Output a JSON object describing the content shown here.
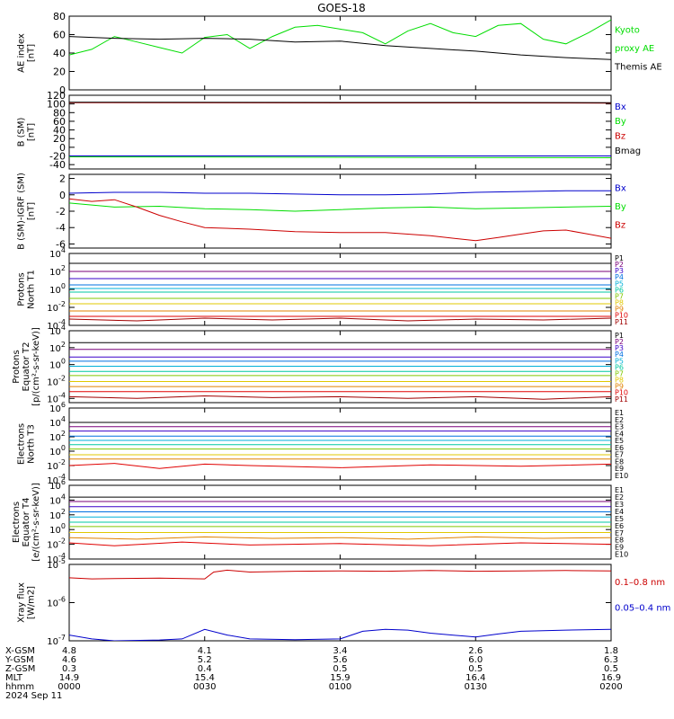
{
  "title": "GOES-18",
  "colors": {
    "black": "#000000",
    "green": "#00dd00",
    "red": "#cc0000",
    "blue": "#0000cc",
    "P1": "#000000",
    "P2": "#7a007a",
    "P3": "#3a00c8",
    "P4": "#0070e0",
    "P5": "#00b0d8",
    "P6": "#00c8a0",
    "P7": "#80c800",
    "P8": "#e0c800",
    "P9": "#e08000",
    "P10": "#e00000",
    "P11": "#a00000"
  },
  "chart_data": [
    {
      "type": "line",
      "ylabel": "AE index\n[nT]",
      "yscale": "linear",
      "ylim": [
        0,
        80
      ],
      "yticks": [
        "0",
        "20",
        "40",
        "60",
        "80"
      ],
      "series": [
        {
          "name": "Kyoto proxy AE",
          "color": "green",
          "x": [
            0,
            5,
            10,
            15,
            20,
            25,
            30,
            35,
            40,
            45,
            50,
            55,
            60,
            65,
            70,
            75,
            80,
            85,
            90,
            95,
            100,
            105,
            110,
            115,
            120
          ],
          "values": [
            38,
            44,
            58,
            52,
            46,
            40,
            57,
            60,
            45,
            58,
            68,
            70,
            66,
            62,
            50,
            64,
            72,
            62,
            58,
            70,
            72,
            55,
            50,
            62,
            76
          ]
        },
        {
          "name": "Themis AE",
          "color": "black",
          "x": [
            0,
            10,
            20,
            30,
            40,
            50,
            60,
            70,
            80,
            90,
            100,
            110,
            120
          ],
          "values": [
            58,
            56,
            55,
            56,
            55,
            52,
            53,
            48,
            45,
            42,
            38,
            35,
            33
          ]
        }
      ]
    },
    {
      "type": "line",
      "ylabel": "B (SM)\n[nT]",
      "yscale": "linear",
      "ylim": [
        -50,
        120
      ],
      "yticks": [
        "-40",
        "-20",
        "0",
        "20",
        "40",
        "60",
        "80",
        "100",
        "120"
      ],
      "series": [
        {
          "name": "Bx",
          "color": "blue",
          "x": [
            0,
            120
          ],
          "values": [
            -20,
            -20
          ]
        },
        {
          "name": "By",
          "color": "green",
          "x": [
            0,
            120
          ],
          "values": [
            -22,
            -24
          ]
        },
        {
          "name": "Bz",
          "color": "red",
          "x": [
            0,
            120
          ],
          "values": [
            103,
            102
          ]
        },
        {
          "name": "Bmag",
          "color": "black",
          "x": [
            0,
            120
          ],
          "values": [
            104,
            103
          ]
        }
      ]
    },
    {
      "type": "line",
      "ylabel": "B (SM)-IGRF (SM)\n[nT]",
      "yscale": "linear",
      "ylim": [
        -6.5,
        2.5
      ],
      "yticks": [
        "-6",
        "-4",
        "-2",
        "0",
        "2"
      ],
      "series": [
        {
          "name": "Bx",
          "color": "blue",
          "x": [
            0,
            10,
            20,
            30,
            40,
            50,
            60,
            70,
            80,
            90,
            100,
            110,
            120
          ],
          "values": [
            0.2,
            0.3,
            0.3,
            0.2,
            0.2,
            0.1,
            0.0,
            0.0,
            0.1,
            0.3,
            0.4,
            0.5,
            0.5
          ]
        },
        {
          "name": "By",
          "color": "green",
          "x": [
            0,
            10,
            20,
            30,
            40,
            50,
            60,
            70,
            80,
            90,
            100,
            110,
            120
          ],
          "values": [
            -1.0,
            -1.5,
            -1.4,
            -1.7,
            -1.8,
            -2.0,
            -1.8,
            -1.6,
            -1.5,
            -1.7,
            -1.6,
            -1.5,
            -1.4
          ]
        },
        {
          "name": "Bz",
          "color": "red",
          "x": [
            0,
            5,
            10,
            15,
            20,
            25,
            30,
            40,
            50,
            60,
            70,
            80,
            90,
            95,
            100,
            105,
            110,
            115,
            120
          ],
          "values": [
            -0.5,
            -0.8,
            -0.6,
            -1.5,
            -2.5,
            -3.3,
            -4.0,
            -4.2,
            -4.5,
            -4.6,
            -4.6,
            -5.0,
            -5.6,
            -5.2,
            -4.8,
            -4.4,
            -4.3,
            -4.8,
            -5.3
          ]
        }
      ]
    },
    {
      "type": "line",
      "ylabel": "Protons\nNorth T1",
      "yscale": "log",
      "ylim": [
        -4,
        4
      ],
      "yticks": [
        "10^-4",
        "10^-2",
        "10^0",
        "10^2",
        "10^4"
      ],
      "series": [
        {
          "name": "P1",
          "color": "P1",
          "x": [
            0,
            120
          ],
          "values": [
            2.9,
            2.9
          ]
        },
        {
          "name": "P2",
          "color": "P2",
          "x": [
            0,
            120
          ],
          "values": [
            2.0,
            2.0
          ]
        },
        {
          "name": "P3",
          "color": "P3",
          "x": [
            0,
            120
          ],
          "values": [
            1.2,
            1.2
          ]
        },
        {
          "name": "P4",
          "color": "P4",
          "x": [
            0,
            120
          ],
          "values": [
            0.5,
            0.5
          ]
        },
        {
          "name": "P5",
          "color": "P5",
          "x": [
            0,
            120
          ],
          "values": [
            0.1,
            0.1
          ]
        },
        {
          "name": "P6",
          "color": "P6",
          "x": [
            0,
            120
          ],
          "values": [
            -0.3,
            -0.3
          ]
        },
        {
          "name": "P7",
          "color": "P7",
          "x": [
            0,
            120
          ],
          "values": [
            -1.0,
            -1.0
          ]
        },
        {
          "name": "P8",
          "color": "P8",
          "x": [
            0,
            120
          ],
          "values": [
            -1.6,
            -1.6
          ]
        },
        {
          "name": "P9",
          "color": "P9",
          "x": [
            0,
            120
          ],
          "values": [
            -2.4,
            -2.4
          ]
        },
        {
          "name": "P10",
          "color": "P10",
          "x": [
            0,
            120
          ],
          "values": [
            -3.0,
            -3.0
          ]
        },
        {
          "name": "P11",
          "color": "P11",
          "x": [
            0,
            15,
            30,
            45,
            60,
            75,
            90,
            105,
            120
          ],
          "values": [
            -3.3,
            -3.5,
            -3.2,
            -3.4,
            -3.2,
            -3.5,
            -3.3,
            -3.4,
            -3.2
          ]
        }
      ]
    },
    {
      "type": "line",
      "ylabel": "Protons\nEquator T2\n[p/(cm²-s-sr-keV)]",
      "yscale": "log",
      "ylim": [
        -4.5,
        4
      ],
      "yticks": [
        "10^-4",
        "10^-2",
        "10^0",
        "10^2",
        "10^4"
      ],
      "series": [
        {
          "name": "P1",
          "color": "P1",
          "x": [
            0,
            120
          ],
          "values": [
            2.6,
            2.6
          ]
        },
        {
          "name": "P2",
          "color": "P2",
          "x": [
            0,
            120
          ],
          "values": [
            1.8,
            1.8
          ]
        },
        {
          "name": "P3",
          "color": "P3",
          "x": [
            0,
            120
          ],
          "values": [
            0.9,
            0.9
          ]
        },
        {
          "name": "P4",
          "color": "P4",
          "x": [
            0,
            120
          ],
          "values": [
            0.4,
            0.4
          ]
        },
        {
          "name": "P5",
          "color": "P5",
          "x": [
            0,
            120
          ],
          "values": [
            -0.2,
            -0.2
          ]
        },
        {
          "name": "P6",
          "color": "P6",
          "x": [
            0,
            120
          ],
          "values": [
            -0.8,
            -0.8
          ]
        },
        {
          "name": "P7",
          "color": "P7",
          "x": [
            0,
            120
          ],
          "values": [
            -1.3,
            -1.3
          ]
        },
        {
          "name": "P8",
          "color": "P8",
          "x": [
            0,
            120
          ],
          "values": [
            -2.0,
            -2.0
          ]
        },
        {
          "name": "P9",
          "color": "P9",
          "x": [
            0,
            120
          ],
          "values": [
            -2.6,
            -2.6
          ]
        },
        {
          "name": "P10",
          "color": "P10",
          "x": [
            0,
            120
          ],
          "values": [
            -3.2,
            -3.2
          ]
        },
        {
          "name": "P11",
          "color": "P11",
          "x": [
            0,
            15,
            30,
            45,
            60,
            75,
            90,
            105,
            120
          ],
          "values": [
            -3.8,
            -4.0,
            -3.7,
            -3.9,
            -3.8,
            -4.0,
            -3.8,
            -4.1,
            -3.8
          ]
        }
      ]
    },
    {
      "type": "line",
      "ylabel": "Electrons\nNorth T3",
      "yscale": "log",
      "ylim": [
        -4,
        6
      ],
      "yticks": [
        "10^-4",
        "10^-2",
        "10^0",
        "10^2",
        "10^4",
        "10^6"
      ],
      "series": [
        {
          "name": "E1",
          "color": "P1",
          "x": [
            0,
            120
          ],
          "values": [
            4.0,
            4.0
          ]
        },
        {
          "name": "E2",
          "color": "P2",
          "x": [
            0,
            120
          ],
          "values": [
            3.4,
            3.4
          ]
        },
        {
          "name": "E3",
          "color": "P3",
          "x": [
            0,
            120
          ],
          "values": [
            2.8,
            2.8
          ]
        },
        {
          "name": "E4",
          "color": "P4",
          "x": [
            0,
            120
          ],
          "values": [
            2.1,
            2.1
          ]
        },
        {
          "name": "E5",
          "color": "P5",
          "x": [
            0,
            120
          ],
          "values": [
            1.5,
            1.5
          ]
        },
        {
          "name": "E6",
          "color": "P6",
          "x": [
            0,
            120
          ],
          "values": [
            0.9,
            0.9
          ]
        },
        {
          "name": "E7",
          "color": "P7",
          "x": [
            0,
            120
          ],
          "values": [
            0.3,
            0.3
          ]
        },
        {
          "name": "E8",
          "color": "P8",
          "x": [
            0,
            120
          ],
          "values": [
            -0.5,
            -0.5
          ]
        },
        {
          "name": "E9",
          "color": "P9",
          "x": [
            0,
            120
          ],
          "values": [
            -1.1,
            -1.1
          ]
        },
        {
          "name": "E10",
          "color": "P10",
          "x": [
            0,
            10,
            20,
            30,
            40,
            60,
            80,
            100,
            120
          ],
          "values": [
            -2.0,
            -1.7,
            -2.4,
            -1.8,
            -2.0,
            -2.3,
            -1.9,
            -2.1,
            -1.8
          ]
        }
      ]
    },
    {
      "type": "line",
      "ylabel": "Electrons\nEquator T4\n[e/(cm²-s-sr-keV)]",
      "yscale": "log",
      "ylim": [
        -4,
        6
      ],
      "yticks": [
        "10^-4",
        "10^-2",
        "10^0",
        "10^2",
        "10^4",
        "10^6"
      ],
      "series": [
        {
          "name": "E1",
          "color": "P1",
          "x": [
            0,
            120
          ],
          "values": [
            4.4,
            4.4
          ]
        },
        {
          "name": "E2",
          "color": "P2",
          "x": [
            0,
            120
          ],
          "values": [
            3.8,
            3.8
          ]
        },
        {
          "name": "E3",
          "color": "P3",
          "x": [
            0,
            120
          ],
          "values": [
            3.1,
            3.1
          ]
        },
        {
          "name": "E4",
          "color": "P4",
          "x": [
            0,
            120
          ],
          "values": [
            2.4,
            2.4
          ]
        },
        {
          "name": "E5",
          "color": "P5",
          "x": [
            0,
            120
          ],
          "values": [
            1.7,
            1.7
          ]
        },
        {
          "name": "E6",
          "color": "P6",
          "x": [
            0,
            120
          ],
          "values": [
            1.0,
            1.0
          ]
        },
        {
          "name": "E7",
          "color": "P7",
          "x": [
            0,
            120
          ],
          "values": [
            0.4,
            0.4
          ]
        },
        {
          "name": "E8",
          "color": "P8",
          "x": [
            0,
            120
          ],
          "values": [
            -0.4,
            -0.4
          ]
        },
        {
          "name": "E9",
          "color": "P9",
          "x": [
            0,
            15,
            30,
            45,
            60,
            75,
            90,
            105,
            120
          ],
          "values": [
            -1.1,
            -1.3,
            -1.0,
            -1.2,
            -1.1,
            -1.3,
            -1.0,
            -1.2,
            -1.1
          ]
        },
        {
          "name": "E10",
          "color": "P10",
          "x": [
            0,
            10,
            25,
            40,
            60,
            80,
            100,
            120
          ],
          "values": [
            -1.8,
            -2.2,
            -1.7,
            -2.1,
            -1.9,
            -2.2,
            -1.8,
            -2.0
          ]
        }
      ]
    },
    {
      "type": "line",
      "ylabel": "Xray flux\n[W/m2]",
      "yscale": "log",
      "ylim": [
        -7,
        -5
      ],
      "yticks": [
        "10^-7",
        "10^-6",
        "10^-5"
      ],
      "series": [
        {
          "name": "0.1–0.8 nm",
          "color": "red",
          "x": [
            0,
            5,
            10,
            20,
            30,
            32,
            35,
            40,
            50,
            60,
            70,
            80,
            90,
            100,
            110,
            120
          ],
          "values": [
            -5.35,
            -5.38,
            -5.37,
            -5.36,
            -5.38,
            -5.2,
            -5.15,
            -5.2,
            -5.18,
            -5.17,
            -5.18,
            -5.16,
            -5.18,
            -5.17,
            -5.16,
            -5.17
          ]
        },
        {
          "name": "0.05–0.4 nm",
          "color": "blue",
          "x": [
            0,
            5,
            10,
            20,
            25,
            30,
            35,
            40,
            50,
            60,
            65,
            70,
            75,
            80,
            90,
            95,
            100,
            110,
            120
          ],
          "values": [
            -6.85,
            -6.95,
            -7.0,
            -6.98,
            -6.95,
            -6.7,
            -6.85,
            -6.95,
            -6.97,
            -6.95,
            -6.75,
            -6.7,
            -6.72,
            -6.8,
            -6.9,
            -6.82,
            -6.75,
            -6.72,
            -6.7
          ]
        }
      ]
    }
  ],
  "right_labels": [
    [
      {
        "text": "Kyoto",
        "color": "green"
      },
      {
        "text": "proxy AE",
        "color": "green"
      },
      {
        "text": "Themis AE",
        "color": "black"
      }
    ],
    [
      {
        "text": "Bx",
        "color": "blue"
      },
      {
        "text": "By",
        "color": "green"
      },
      {
        "text": "Bz",
        "color": "red"
      },
      {
        "text": "Bmag",
        "color": "black"
      }
    ],
    [
      {
        "text": "Bx",
        "color": "blue"
      },
      {
        "text": "By",
        "color": "green"
      },
      {
        "text": "Bz",
        "color": "red"
      }
    ],
    [
      "P1",
      "P2",
      "P3",
      "P4",
      "P5",
      "P6",
      "P7",
      "P8",
      "P9",
      "P10",
      "P11"
    ],
    [
      "P1",
      "P2",
      "P3",
      "P4",
      "P5",
      "P6",
      "P7",
      "P8",
      "P9",
      "P10",
      "P11"
    ],
    [
      "E1",
      "E2",
      "E3",
      "E4",
      "E5",
      "E6",
      "E7",
      "E8",
      "E9",
      "E10"
    ],
    [
      "E1",
      "E2",
      "E3",
      "E4",
      "E5",
      "E6",
      "E7",
      "E8",
      "E9",
      "E10"
    ],
    [
      {
        "text": "0.1–0.8 nm",
        "color": "red"
      },
      {
        "text": "0.05–0.4 nm",
        "color": "blue"
      }
    ]
  ],
  "footer": {
    "row_labels": [
      "X-GSM",
      "Y-GSM",
      "Z-GSM",
      "MLT",
      "hhmm",
      "2024 Sep 11"
    ],
    "columns": [
      [
        "4.8",
        "4.6",
        "0.3",
        "14.9",
        "0000"
      ],
      [
        "4.1",
        "5.2",
        "0.4",
        "15.4",
        "0030"
      ],
      [
        "3.4",
        "5.6",
        "0.5",
        "15.9",
        "0100"
      ],
      [
        "2.6",
        "6.0",
        "0.5",
        "16.4",
        "0130"
      ],
      [
        "1.8",
        "6.3",
        "0.5",
        "16.9",
        "0200"
      ]
    ]
  }
}
